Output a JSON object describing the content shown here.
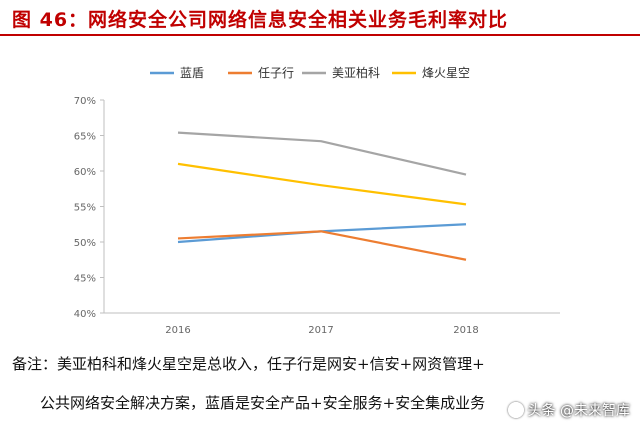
{
  "header": {
    "title": "图 46：网络安全公司网络信息安全相关业务毛利率对比"
  },
  "chart_data": {
    "type": "line",
    "title": "",
    "xlabel": "",
    "ylabel": "",
    "x": [
      "2016",
      "2017",
      "2018"
    ],
    "ylim": [
      40,
      70
    ],
    "yticks": [
      "40%",
      "45%",
      "50%",
      "55%",
      "60%",
      "65%",
      "70%"
    ],
    "legend_position": "top",
    "grid": false,
    "series": [
      {
        "name": "蓝盾",
        "color": "#5b9bd5",
        "values": [
          50.0,
          51.5,
          52.5
        ]
      },
      {
        "name": "任子行",
        "color": "#ed7d31",
        "values": [
          50.5,
          51.5,
          47.5
        ]
      },
      {
        "name": "美亚柏科",
        "color": "#a5a5a5",
        "values": [
          65.4,
          64.2,
          59.5
        ]
      },
      {
        "name": "烽火星空",
        "color": "#ffc000",
        "values": [
          61.0,
          58.0,
          55.3
        ]
      }
    ]
  },
  "notes": {
    "line1": "备注：美亚柏科和烽火星空是总收入，任子行是网安+信安+网资管理+",
    "line2": "公共网络安全解决方案，蓝盾是安全产品+安全服务+安全集成业务"
  },
  "watermark": {
    "text": "头条 @未来智库",
    "icon": "camera-lens-icon"
  }
}
